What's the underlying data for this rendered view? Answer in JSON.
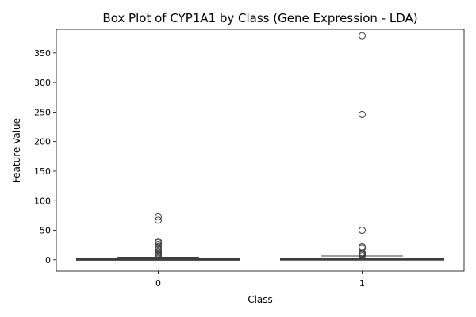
{
  "chart_data": {
    "type": "box",
    "title": "Box Plot of CYP1A1 by Class (Gene Expression - LDA)",
    "xlabel": "Class",
    "ylabel": "Feature Value",
    "categories": [
      "0",
      "1"
    ],
    "ylim": [
      -19,
      390
    ],
    "yticks": [
      0,
      50,
      100,
      150,
      200,
      250,
      300,
      350
    ],
    "grid": false,
    "legend": "none",
    "box_color": "#3f3f3f",
    "series": [
      {
        "category": "0",
        "q1": 0.4,
        "median": 0.9,
        "q3": 1.6,
        "whisker_low": 0.0,
        "whisker_high": 4.5,
        "outliers": [
          73,
          67,
          31,
          29,
          26,
          22,
          19,
          17,
          14,
          12,
          10,
          8,
          6
        ]
      },
      {
        "category": "1",
        "q1": 0.4,
        "median": 0.9,
        "q3": 1.8,
        "whisker_low": 0.0,
        "whisker_high": 6.5,
        "outliers": [
          379,
          246,
          50,
          22,
          20,
          12,
          10,
          9,
          7
        ]
      }
    ]
  }
}
